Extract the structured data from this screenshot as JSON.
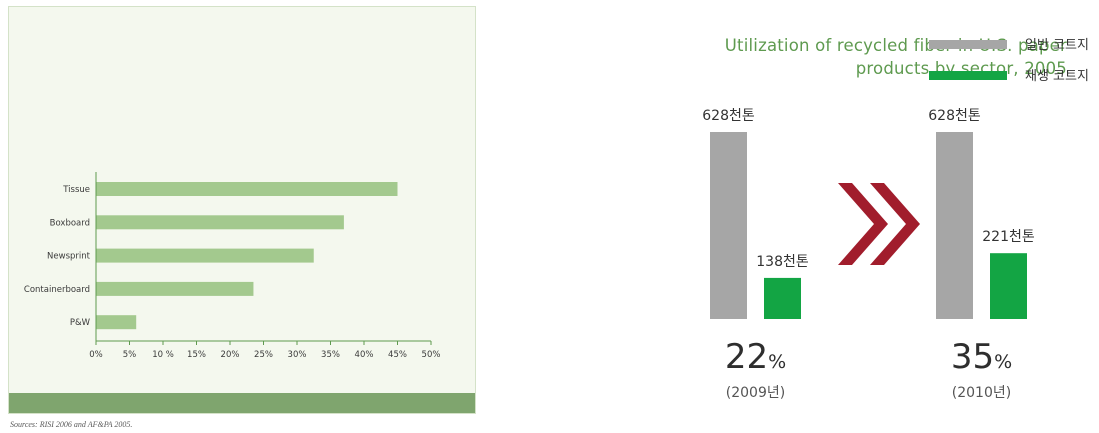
{
  "colors": {
    "bar_green": "#a3c98e",
    "axis_green": "#5e9a4f",
    "panel_bg": "#f4f8ee",
    "footer_band": "#7fa56e",
    "general_gray": "#a6a6a6",
    "recycled_green": "#13a544",
    "chevron_red": "#a11d2c"
  },
  "left": {
    "title_line1": "Utilization of recycled fiber in U.S. paper",
    "title_line2": "products by sector, 2005",
    "source": "Sources: RISI 2006 and AF&PA 2005."
  },
  "chart_data": [
    {
      "type": "bar",
      "orientation": "horizontal",
      "title": "Utilization of recycled fiber in U.S. paper products by sector, 2005",
      "categories": [
        "Tissue",
        "Boxboard",
        "Newsprint",
        "Containerboard",
        "P&W"
      ],
      "values": [
        45,
        37,
        32.5,
        23.5,
        6
      ],
      "x_ticks": [
        "0%",
        "5%",
        "10 %",
        "15%",
        "20%",
        "25%",
        "30%",
        "35%",
        "40%",
        "45%",
        "50%"
      ],
      "xlim": [
        0,
        50
      ],
      "grid": false
    },
    {
      "type": "bar",
      "legend": [
        "일반 코트지",
        "재생 코트지"
      ],
      "legend_placement": "top-right",
      "groups": [
        {
          "year_label": "(2009년)",
          "percent_value": "22",
          "percent_unit": "%",
          "general": {
            "value": 628,
            "label": "628천톤"
          },
          "recycled": {
            "value": 138,
            "label": "138천톤"
          }
        },
        {
          "year_label": "(2010년)",
          "percent_value": "35",
          "percent_unit": "%",
          "general": {
            "value": 628,
            "label": "628천톤"
          },
          "recycled": {
            "value": 221,
            "label": "221천톤"
          }
        }
      ],
      "ylim": [
        0,
        628
      ]
    }
  ]
}
